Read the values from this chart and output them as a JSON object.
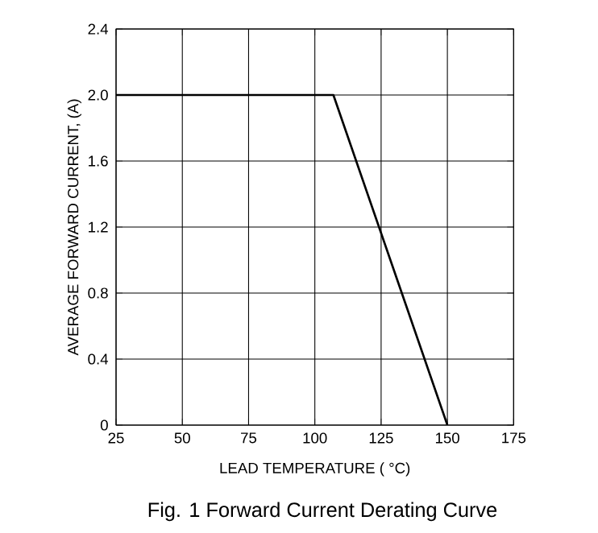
{
  "chart_data": {
    "type": "line",
    "title": "Fig. 1  Forward Current Derating Curve",
    "xlabel": "LEAD TEMPERATURE ( °C)",
    "ylabel": "AVERAGE FORWARD CURRENT, (A)",
    "series": [
      {
        "color": "#000000",
        "x": [
          25,
          107,
          150
        ],
        "values": [
          2.0,
          2.0,
          0
        ]
      }
    ],
    "xlim": [
      25,
      175
    ],
    "ylim": [
      0,
      2.4
    ],
    "xticks": [
      25,
      50,
      75,
      100,
      125,
      150,
      175
    ],
    "yticks": [
      0,
      0.4,
      0.8,
      1.2,
      1.6,
      {
        "value": 2.0,
        "label": "2.0"
      },
      2.4
    ],
    "grid": true,
    "marker": "none",
    "line_style": "solid"
  }
}
